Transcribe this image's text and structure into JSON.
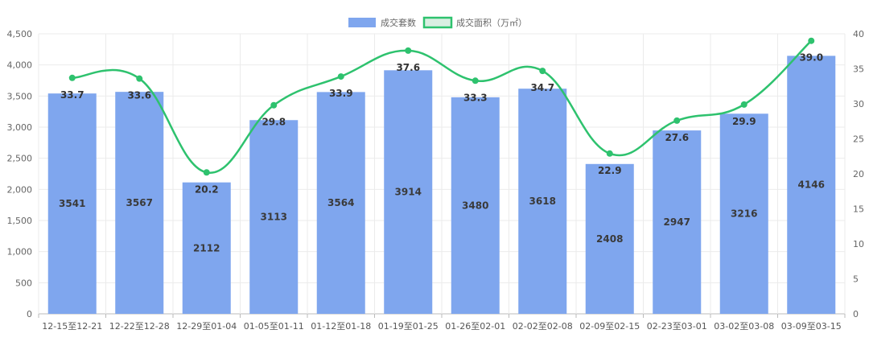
{
  "chart_data": {
    "type": "bar+line",
    "categories": [
      "12-15至12-21",
      "12-22至12-28",
      "12-29至01-04",
      "01-05至01-11",
      "01-12至01-18",
      "01-19至01-25",
      "01-26至02-01",
      "02-02至02-08",
      "02-09至02-15",
      "02-23至03-01",
      "03-02至03-08",
      "03-09至03-15"
    ],
    "series": [
      {
        "name": "成交套数",
        "type": "bar",
        "axis": "left",
        "values": [
          3541,
          3567,
          2112,
          3113,
          3564,
          3914,
          3480,
          3618,
          2408,
          2947,
          3216,
          4146
        ]
      },
      {
        "name": "成交面积（万㎡）",
        "type": "line",
        "axis": "right",
        "values": [
          33.7,
          33.6,
          20.2,
          29.8,
          33.9,
          37.6,
          33.3,
          34.7,
          22.9,
          27.6,
          29.9,
          39.0
        ]
      }
    ],
    "y_left": {
      "min": 0,
      "max": 4500,
      "step": 500
    },
    "y_right": {
      "min": 0,
      "max": 40,
      "step": 5
    },
    "grid": true,
    "legend": "top-center",
    "colors": {
      "bar": "#7fa6ee",
      "line": "#2ec26e",
      "grid": "#ebebeb",
      "axis": "#cccccc"
    }
  }
}
